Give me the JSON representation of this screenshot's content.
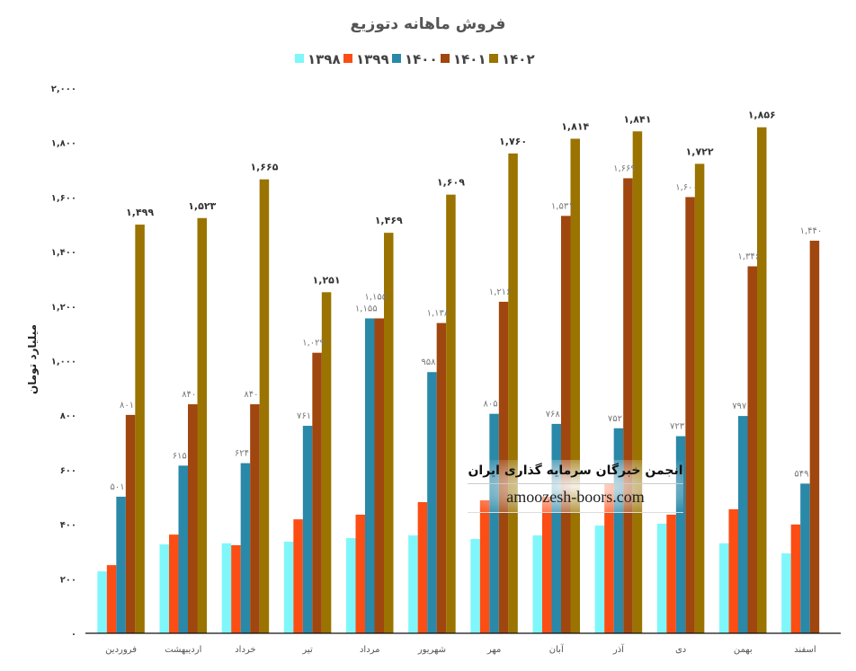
{
  "chart_data": {
    "type": "bar",
    "title": "فروش ماهانه دتوزیع",
    "ylabel": "میلیارد تومان",
    "xlabel": "",
    "ylim": [
      0,
      2000
    ],
    "yticks": [
      0,
      200,
      400,
      600,
      800,
      1000,
      1200,
      1400,
      1600,
      1800,
      2000
    ],
    "legend_position": "top",
    "categories": [
      "فروردین",
      "اردیبهشت",
      "خرداد",
      "تیر",
      "مرداد",
      "شهریور",
      "مهر",
      "آبان",
      "آذر",
      "دی",
      "بهمن",
      "اسفند"
    ],
    "series": [
      {
        "name": "۱۳۹۸",
        "color": "#7ff7fa",
        "labeled": false,
        "values": [
          227,
          326,
          330,
          336,
          349,
          359,
          346,
          359,
          395,
          402,
          330,
          293
        ]
      },
      {
        "name": "۱۳۹۹",
        "color": "#fc4e14",
        "labeled": false,
        "values": [
          250,
          362,
          323,
          418,
          435,
          481,
          488,
          501,
          547,
          435,
          455,
          399
        ]
      },
      {
        "name": "۱۴۰۰",
        "color": "#2a88a8",
        "labeled": true,
        "values": [
          501,
          615,
          624,
          761,
          1155,
          958,
          805,
          768,
          752,
          723,
          797,
          549
        ]
      },
      {
        "name": "۱۴۰۱",
        "color": "#a0460f",
        "labeled": true,
        "values": [
          801,
          840,
          840,
          1029,
          1155,
          1138,
          1216,
          1531,
          1669,
          1600,
          1346,
          1440
        ]
      },
      {
        "name": "۱۴۰۲",
        "color": "#9a7300",
        "labeled": true,
        "bold_labels": true,
        "values": [
          1499,
          1523,
          1665,
          1251,
          1469,
          1609,
          1760,
          1814,
          1841,
          1722,
          1856,
          null
        ]
      }
    ]
  },
  "watermark": {
    "title": "انجمن خبرگان سرمایه گذاری ایران",
    "url": "amoozesh-boors.com"
  }
}
